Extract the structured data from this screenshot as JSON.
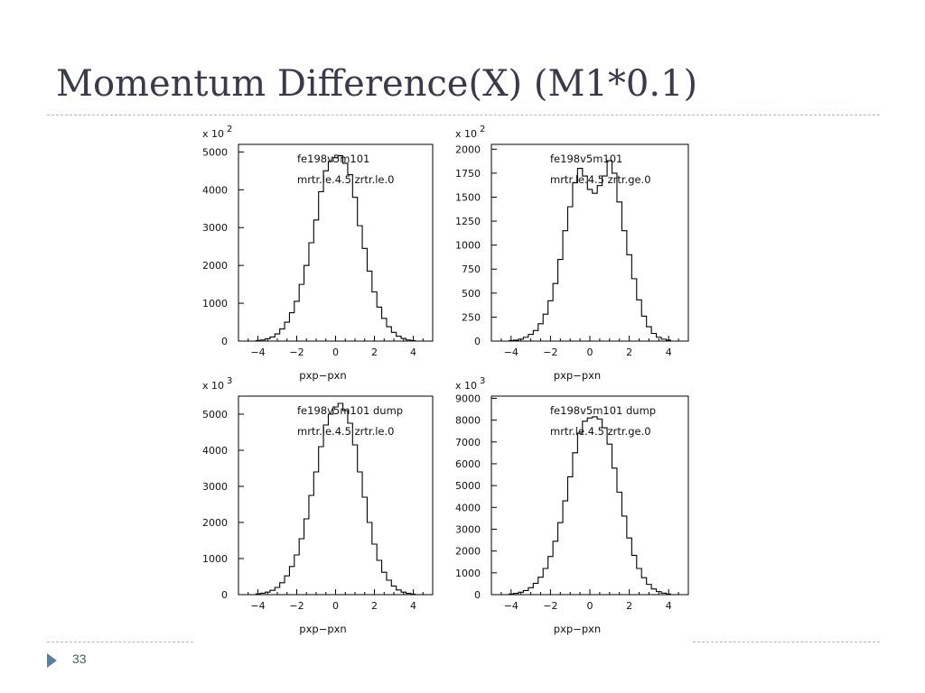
{
  "slide": {
    "title": "Momentum Difference(X) (M1*0.1)",
    "page_number": "33",
    "accent_color": "#5b7f9e"
  },
  "chart_data": [
    {
      "type": "bar",
      "scale_label": "x 10 2",
      "label_lines": [
        "fe198v5m101",
        "mrtr.le.4.5 zrtr.le.0"
      ],
      "xlabel": "pxp−pxn",
      "xlim": [
        -5,
        5
      ],
      "ylim": [
        0,
        5200
      ],
      "xticks": [
        -4,
        -2,
        0,
        2,
        4
      ],
      "yticks": [
        0,
        1000,
        2000,
        3000,
        4000,
        5000
      ],
      "bins_x": [
        -4.0,
        -3.75,
        -3.5,
        -3.25,
        -3.0,
        -2.75,
        -2.5,
        -2.25,
        -2.0,
        -1.75,
        -1.5,
        -1.25,
        -1.0,
        -0.75,
        -0.5,
        -0.25,
        0.0,
        0.25,
        0.5,
        0.75,
        1.0,
        1.25,
        1.5,
        1.75,
        2.0,
        2.25,
        2.5,
        2.75,
        3.0,
        3.25,
        3.5,
        3.75,
        4.0
      ],
      "values": [
        15,
        30,
        60,
        110,
        190,
        320,
        500,
        750,
        1050,
        1500,
        2000,
        2600,
        3200,
        3950,
        4500,
        4750,
        4850,
        4900,
        4700,
        4400,
        3800,
        3050,
        2450,
        1850,
        1300,
        900,
        600,
        380,
        230,
        130,
        70,
        30,
        15
      ]
    },
    {
      "type": "bar",
      "scale_label": "x 10 2",
      "label_lines": [
        "fe198v5m101",
        "mrtr.le.4.5 zrtr.ge.0"
      ],
      "xlabel": "pxp−pxn",
      "xlim": [
        -5,
        5
      ],
      "ylim": [
        0,
        2050
      ],
      "xticks": [
        -4,
        -2,
        0,
        2,
        4
      ],
      "yticks": [
        0,
        250,
        500,
        750,
        1000,
        1250,
        1500,
        1750,
        2000
      ],
      "bins_x": [
        -4.0,
        -3.75,
        -3.5,
        -3.25,
        -3.0,
        -2.75,
        -2.5,
        -2.25,
        -2.0,
        -1.75,
        -1.5,
        -1.25,
        -1.0,
        -0.75,
        -0.5,
        -0.25,
        0.0,
        0.25,
        0.5,
        0.75,
        1.0,
        1.25,
        1.5,
        1.75,
        2.0,
        2.25,
        2.5,
        2.75,
        3.0,
        3.25,
        3.5,
        3.75,
        4.0
      ],
      "values": [
        5,
        10,
        20,
        40,
        70,
        110,
        180,
        280,
        420,
        600,
        850,
        1150,
        1400,
        1650,
        1800,
        1720,
        1580,
        1540,
        1620,
        1720,
        1880,
        1750,
        1450,
        1150,
        900,
        650,
        430,
        260,
        150,
        80,
        40,
        20,
        10
      ]
    },
    {
      "type": "bar",
      "scale_label": "x 10 3",
      "label_lines": [
        "fe198v5m101 dump",
        "mrtr.le.4.5 zrtr.le.0"
      ],
      "xlabel": "pxp−pxn",
      "xlim": [
        -5,
        5
      ],
      "ylim": [
        0,
        5500
      ],
      "xticks": [
        -4,
        -2,
        0,
        2,
        4
      ],
      "yticks": [
        0,
        1000,
        2000,
        3000,
        4000,
        5000
      ],
      "bins_x": [
        -4.0,
        -3.75,
        -3.5,
        -3.25,
        -3.0,
        -2.75,
        -2.5,
        -2.25,
        -2.0,
        -1.75,
        -1.5,
        -1.25,
        -1.0,
        -0.75,
        -0.5,
        -0.25,
        0.0,
        0.25,
        0.5,
        0.75,
        1.0,
        1.25,
        1.5,
        1.75,
        2.0,
        2.25,
        2.5,
        2.75,
        3.0,
        3.25,
        3.5,
        3.75,
        4.0
      ],
      "values": [
        20,
        40,
        70,
        120,
        200,
        330,
        520,
        780,
        1100,
        1550,
        2100,
        2750,
        3400,
        4100,
        4700,
        5000,
        5200,
        5300,
        5100,
        4750,
        4150,
        3400,
        2700,
        2000,
        1400,
        950,
        620,
        400,
        240,
        130,
        70,
        35,
        15
      ]
    },
    {
      "type": "bar",
      "scale_label": "x 10 3",
      "label_lines": [
        "fe198v5m101 dump",
        "mrtr.le.4.5 zrtr.ge.0"
      ],
      "xlabel": "pxp−pxn",
      "xlim": [
        -5,
        5
      ],
      "ylim": [
        0,
        9100
      ],
      "xticks": [
        -4,
        -2,
        0,
        2,
        4
      ],
      "yticks": [
        0,
        1000,
        2000,
        3000,
        4000,
        5000,
        6000,
        7000,
        8000,
        9000
      ],
      "bins_x": [
        -4.0,
        -3.75,
        -3.5,
        -3.25,
        -3.0,
        -2.75,
        -2.5,
        -2.25,
        -2.0,
        -1.75,
        -1.5,
        -1.25,
        -1.0,
        -0.75,
        -0.5,
        -0.25,
        0.0,
        0.25,
        0.5,
        0.75,
        1.0,
        1.25,
        1.5,
        1.75,
        2.0,
        2.25,
        2.5,
        2.75,
        3.0,
        3.25,
        3.5,
        3.75,
        4.0
      ],
      "values": [
        30,
        60,
        110,
        190,
        320,
        520,
        800,
        1200,
        1750,
        2450,
        3300,
        4300,
        5400,
        6500,
        7400,
        7950,
        8100,
        8150,
        8050,
        7650,
        6900,
        5800,
        4700,
        3600,
        2600,
        1800,
        1200,
        780,
        470,
        260,
        140,
        70,
        30
      ]
    }
  ]
}
